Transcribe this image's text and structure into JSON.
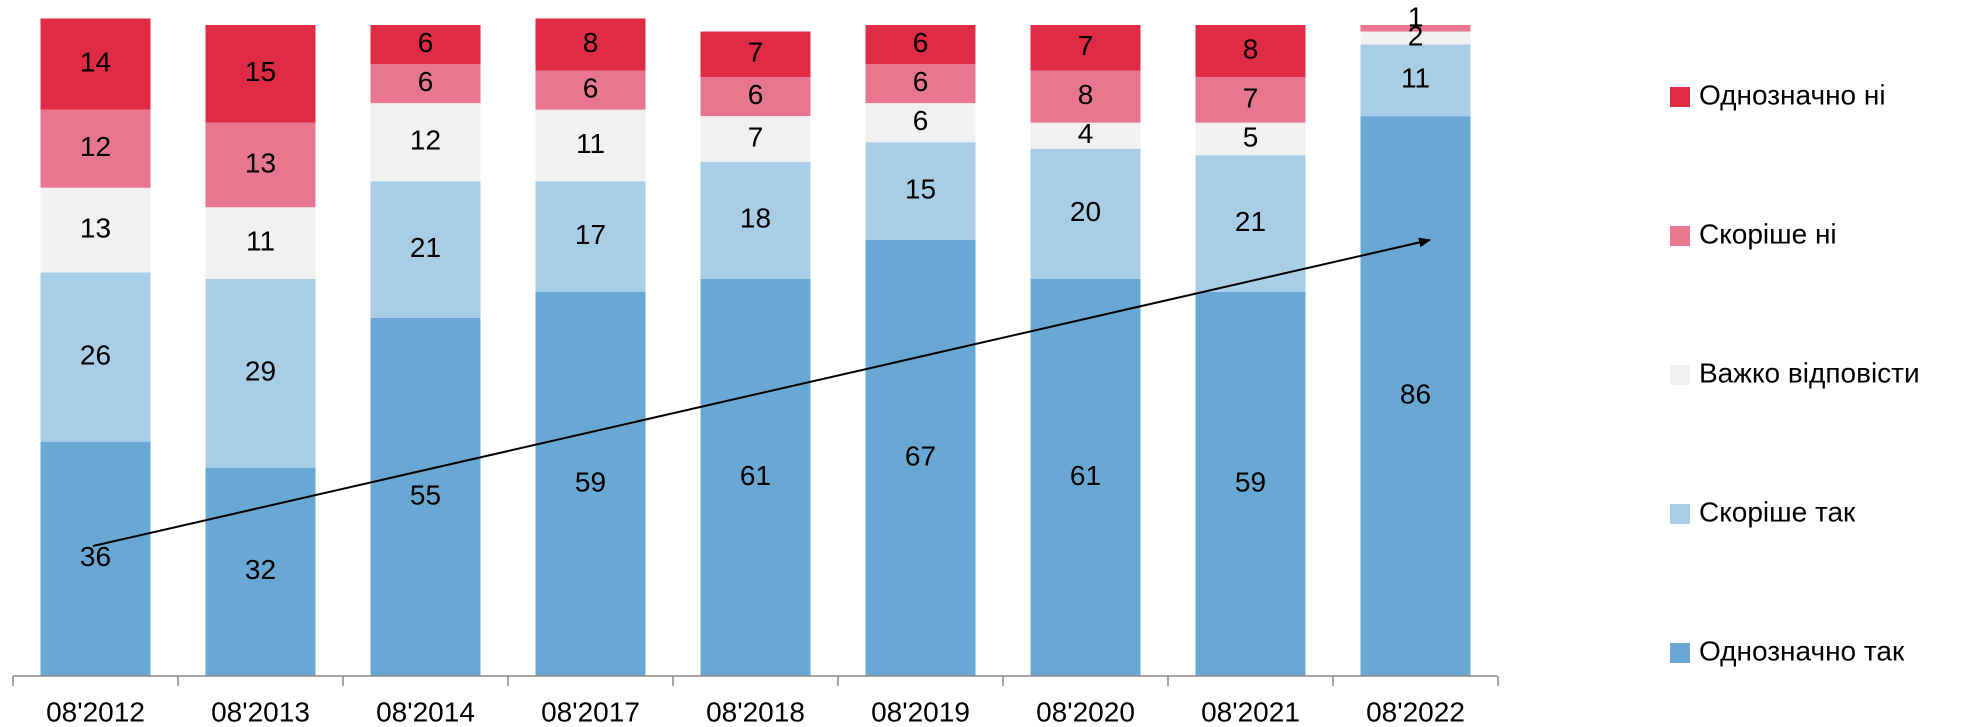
{
  "chart_data": {
    "type": "stacked_bar",
    "categories": [
      "08'2012",
      "08'2013",
      "08'2014",
      "08'2017",
      "08'2018",
      "08'2019",
      "08'2020",
      "08'2021",
      "08'2022"
    ],
    "series": [
      {
        "name": "Однозначно так",
        "color": "#69a8d5",
        "values": [
          36,
          32,
          55,
          59,
          61,
          67,
          61,
          59,
          86
        ]
      },
      {
        "name": "Скоріше так",
        "color": "#a8cde7",
        "values": [
          26,
          29,
          21,
          17,
          18,
          15,
          20,
          21,
          11
        ]
      },
      {
        "name": "Важко відповісти",
        "color": "#f1f1f1",
        "values": [
          13,
          11,
          12,
          11,
          7,
          6,
          4,
          5,
          2
        ]
      },
      {
        "name": "Скоріше ні",
        "color": "#e8768f",
        "values": [
          12,
          13,
          6,
          6,
          6,
          6,
          8,
          7,
          1
        ]
      },
      {
        "name": "Однозначно ні",
        "color": "#e02b45",
        "values": [
          14,
          15,
          6,
          8,
          7,
          6,
          7,
          8,
          null
        ]
      }
    ],
    "ylim": [
      0,
      100
    ]
  }
}
